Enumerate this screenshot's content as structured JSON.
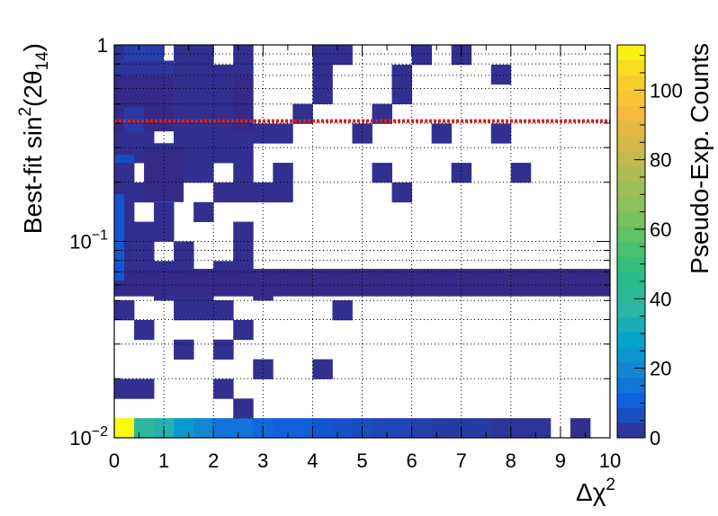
{
  "chart_data": {
    "type": "heatmap",
    "title": "",
    "xlabel_main": "Δχ",
    "xlabel_sup": "2",
    "ylabel_main": "Best-fit sin",
    "ylabel_sup": "2",
    "ylabel_open": "(2θ",
    "ylabel_sub": "14",
    "ylabel_close": ")",
    "colorbar_label": "Pseudo-Exp. Counts",
    "xlim": [
      0,
      10
    ],
    "ylim": [
      0.01,
      1
    ],
    "yscale": "log",
    "grid": true,
    "x_ticks": [
      "0",
      "1",
      "2",
      "3",
      "4",
      "5",
      "6",
      "7",
      "8",
      "9",
      "10"
    ],
    "y_ticks": [
      {
        "value": 0.01,
        "base": "10",
        "exp": "−2"
      },
      {
        "value": 0.1,
        "base": "10",
        "exp": "−1"
      },
      {
        "value": 1,
        "base": "1",
        "exp": ""
      }
    ],
    "colorbar_ticks": [
      "0",
      "20",
      "40",
      "60",
      "80",
      "100"
    ],
    "colorbar_range": [
      0,
      113
    ],
    "reference_line": {
      "y": 0.41,
      "color": "#d62020",
      "style": "dotted"
    },
    "bin_grid": {
      "nx": 25,
      "ny": 20,
      "x_range": [
        0,
        10
      ],
      "log10y_range": [
        -2,
        0
      ]
    },
    "bins": [
      [
        0,
        0,
        113
      ],
      [
        1,
        0,
        40
      ],
      [
        2,
        0,
        35
      ],
      [
        3,
        0,
        25
      ],
      [
        4,
        0,
        20
      ],
      [
        5,
        0,
        15
      ],
      [
        6,
        0,
        15
      ],
      [
        7,
        0,
        12
      ],
      [
        8,
        0,
        10
      ],
      [
        9,
        0,
        10
      ],
      [
        10,
        0,
        8
      ],
      [
        11,
        0,
        7
      ],
      [
        12,
        0,
        6
      ],
      [
        13,
        0,
        5
      ],
      [
        14,
        0,
        5
      ],
      [
        15,
        0,
        4
      ],
      [
        16,
        0,
        3
      ],
      [
        17,
        0,
        3
      ],
      [
        18,
        0,
        3
      ],
      [
        19,
        0,
        2
      ],
      [
        20,
        0,
        2
      ],
      [
        21,
        0,
        2
      ],
      [
        23,
        0,
        1
      ],
      [
        6,
        1,
        1
      ],
      [
        0,
        2,
        1
      ],
      [
        1,
        2,
        1
      ],
      [
        5,
        2,
        1
      ],
      [
        7,
        3,
        1
      ],
      [
        10,
        3,
        1
      ],
      [
        3,
        4,
        1
      ],
      [
        5,
        4,
        1
      ],
      [
        1,
        5,
        1
      ],
      [
        6,
        5,
        1
      ],
      [
        0,
        6,
        1
      ],
      [
        3,
        6,
        1
      ],
      [
        4,
        6,
        1
      ],
      [
        5,
        6,
        1
      ],
      [
        11,
        6,
        1
      ],
      [
        2,
        7,
        1
      ],
      [
        3,
        7,
        1
      ],
      [
        4,
        7,
        1
      ],
      [
        7,
        7,
        1
      ],
      [
        0,
        8,
        1
      ],
      [
        1,
        8,
        1
      ],
      [
        2,
        8,
        1
      ],
      [
        3,
        8,
        1
      ],
      [
        5,
        8,
        1
      ],
      [
        6,
        8,
        1
      ],
      [
        0,
        9,
        1
      ],
      [
        1,
        9,
        1
      ],
      [
        3,
        9,
        1
      ],
      [
        6,
        9,
        1
      ],
      [
        0,
        10,
        1
      ],
      [
        1,
        10,
        1
      ],
      [
        2,
        10,
        1
      ],
      [
        6,
        10,
        1
      ],
      [
        0,
        11,
        1
      ],
      [
        2,
        11,
        1
      ],
      [
        4,
        11,
        1
      ],
      [
        0,
        12,
        1
      ],
      [
        1,
        12,
        1
      ],
      [
        5,
        12,
        1
      ],
      [
        6,
        12,
        1
      ],
      [
        7,
        12,
        1
      ],
      [
        8,
        12,
        1
      ],
      [
        14,
        12,
        1
      ],
      [
        0,
        13,
        1
      ],
      [
        2,
        13,
        1
      ],
      [
        3,
        13,
        1
      ],
      [
        4,
        13,
        1
      ],
      [
        6,
        13,
        1
      ],
      [
        8,
        13,
        1
      ],
      [
        13,
        13,
        1
      ],
      [
        17,
        13,
        1
      ],
      [
        20,
        13,
        1
      ],
      [
        0,
        14,
        1
      ],
      [
        1,
        14,
        1
      ],
      [
        2,
        14,
        1
      ],
      [
        3,
        14,
        1
      ],
      [
        4,
        14,
        1
      ],
      [
        5,
        14,
        1
      ],
      [
        6,
        14,
        1
      ],
      [
        0,
        15,
        1
      ],
      [
        1,
        15,
        1
      ],
      [
        3,
        15,
        1
      ],
      [
        4,
        15,
        1
      ],
      [
        5,
        15,
        1
      ],
      [
        6,
        15,
        1
      ],
      [
        7,
        15,
        1
      ],
      [
        8,
        15,
        1
      ],
      [
        12,
        15,
        1
      ],
      [
        16,
        15,
        1
      ],
      [
        19,
        15,
        1
      ],
      [
        0,
        16,
        1
      ],
      [
        1,
        16,
        1
      ],
      [
        2,
        16,
        1
      ],
      [
        3,
        16,
        1
      ],
      [
        4,
        16,
        1
      ],
      [
        5,
        16,
        1
      ],
      [
        6,
        16,
        1
      ],
      [
        9,
        16,
        1
      ],
      [
        13,
        16,
        1
      ],
      [
        0,
        17,
        1
      ],
      [
        1,
        17,
        1
      ],
      [
        2,
        17,
        1
      ],
      [
        3,
        17,
        1
      ],
      [
        4,
        17,
        1
      ],
      [
        5,
        17,
        1
      ],
      [
        6,
        17,
        1
      ],
      [
        10,
        17,
        1
      ],
      [
        14,
        17,
        1
      ],
      [
        0,
        18,
        1
      ],
      [
        1,
        18,
        1
      ],
      [
        2,
        18,
        1
      ],
      [
        3,
        18,
        1
      ],
      [
        4,
        18,
        1
      ],
      [
        5,
        18,
        1
      ],
      [
        6,
        18,
        1
      ],
      [
        10,
        18,
        1
      ],
      [
        14,
        18,
        1
      ],
      [
        19,
        18,
        1
      ],
      [
        0,
        19,
        1
      ],
      [
        1,
        19,
        1
      ],
      [
        3,
        19,
        1
      ],
      [
        4,
        19,
        1
      ],
      [
        6,
        19,
        1
      ],
      [
        10,
        19,
        1
      ],
      [
        11,
        19,
        1
      ],
      [
        15,
        19,
        1
      ],
      [
        17,
        19,
        1
      ]
    ],
    "blocks": [
      [
        0,
        0.36,
        10.0,
        0.43,
        0
      ],
      [
        0,
        0.78,
        2.8,
        0.92,
        0
      ],
      [
        0,
        0.92,
        1.2,
        0.96,
        2
      ],
      [
        0.2,
        0.96,
        1.0,
        1.0,
        4
      ],
      [
        1.2,
        0.74,
        2.4,
        0.92,
        1
      ],
      [
        0.6,
        0.6,
        1.4,
        0.74,
        0
      ],
      [
        0,
        0.7,
        0.4,
        0.72,
        6
      ],
      [
        0,
        0.4,
        0.2,
        0.62,
        8
      ],
      [
        0.2,
        0.78,
        0.6,
        0.84,
        3
      ]
    ]
  }
}
